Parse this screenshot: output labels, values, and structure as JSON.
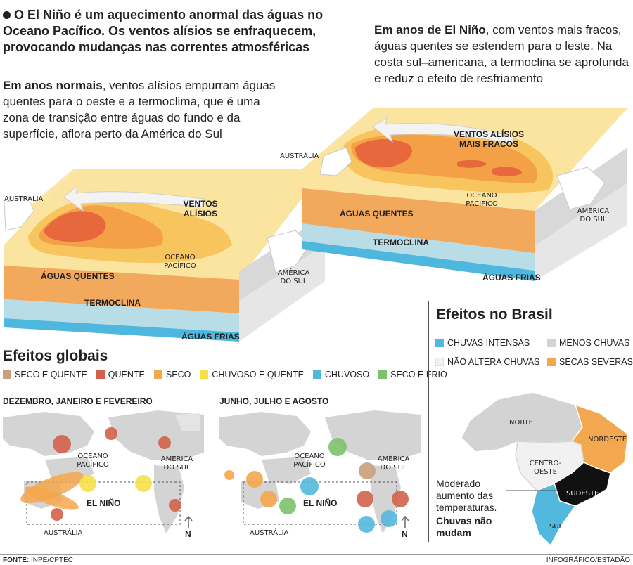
{
  "intro": {
    "text": "O El Niño é um aquecimento anormal das águas no Oceano Pacífico. Os ventos alísios se enfraquecem, provocando mudanças nas correntes atmosféricas"
  },
  "normal": {
    "lead": "Em anos normais",
    "text": ", ventos alísios empurram águas quentes para o oeste e a termoclima, que é uma zona de transição entre águas do fundo e da superfície, aflora perto da América  do Sul",
    "australia": "AUSTRÁLIA",
    "winds": "VENTOS\nALÍSIOS",
    "ocean": "OCEANO\nPACÍFICO",
    "warm": "ÁGUAS QUENTES",
    "america": "AMÉRICA\nDO SUL",
    "thermocline": "TERMOCLINA",
    "cold": "ÁGUAS FRIAS"
  },
  "elnino": {
    "lead": "Em anos de El Niño",
    "text": ", com ventos mais fracos, águas quentes se estendem para o leste. Na costa sul–americana, a termoclina se aprofunda e reduz o efeito de resfriamento",
    "australia": "AUSTRÁLIA",
    "winds": "VENTOS ALÍSIOS\nMAIS FRACOS",
    "ocean": "OCEANO\nPACÍFICO",
    "warm": "ÁGUAS QUENTES",
    "america": "AMÉRICA\nDO SUL",
    "thermocline": "TERMOCLINA",
    "cold": "ÁGUAS FRIAS"
  },
  "global": {
    "title": "Efeitos globais",
    "legend": [
      {
        "label": "SECO E QUENTE",
        "color": "#c9a07a"
      },
      {
        "label": "QUENTE",
        "color": "#d0624b"
      },
      {
        "label": "SECO",
        "color": "#f3a74e"
      },
      {
        "label": "CHUVOSO E QUENTE",
        "color": "#f6e04a"
      },
      {
        "label": "CHUVOSO",
        "color": "#53b8de"
      },
      {
        "label": "SECO E FRIO",
        "color": "#7cc26d"
      }
    ],
    "map1": {
      "title": "DEZEMBRO, JANEIRO E FEVEREIRO",
      "ocean": "OCEANO\nPACÍFICO",
      "america": "AMÉRICA\nDO SUL",
      "nino": "EL NIÑO",
      "australia": "AUSTRÁLIA",
      "north": "N"
    },
    "map2": {
      "title": "JUNHO, JULHO E AGOSTO",
      "ocean": "OCEANO\nPACÍFICO",
      "america": "AMÉRICA\nDO SUL",
      "nino": "EL NIÑO",
      "australia": "AUSTRÁLIA",
      "north": "N"
    }
  },
  "brasil": {
    "title": "Efeitos no Brasil",
    "legend": [
      {
        "label": "CHUVAS INTENSAS",
        "color": "#53b8de"
      },
      {
        "label": "MENOS CHUVAS",
        "color": "#d3d3d3"
      },
      {
        "label": "NÃO ALTERA CHUVAS",
        "color": "#f1f1f1"
      },
      {
        "label": "SECAS SEVERAS",
        "color": "#f3a74e"
      }
    ],
    "regions": {
      "norte": "NORTE",
      "nordeste": "NORDESTE",
      "centro": "CENTRO-\nOESTE",
      "sudeste": "SUDESTE",
      "sul": "SUL"
    },
    "note_text": "Moderado aumento das temperaturas.",
    "note_bold": "Chuvas não mudam"
  },
  "footer": {
    "source_label": "FONTE:",
    "source": "INPE/CPTEC",
    "credit": "INFOGRÁFICO/ESTADÃO"
  }
}
